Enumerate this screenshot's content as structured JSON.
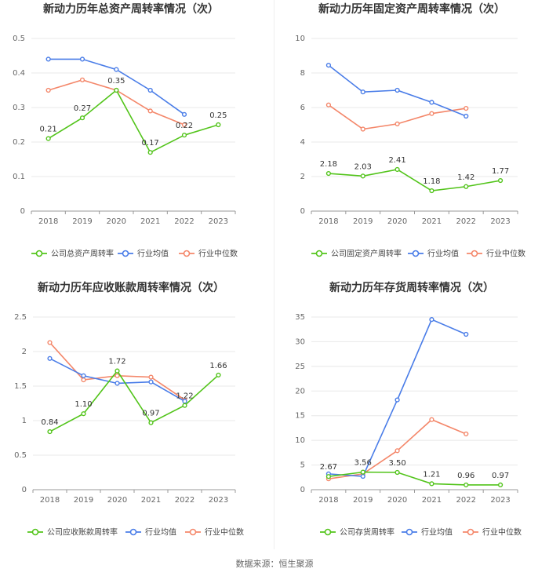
{
  "colors": {
    "company": "#52c41a",
    "industry_avg": "#4a7de8",
    "industry_median": "#f4876a"
  },
  "source": "数据来源：恒生聚源",
  "chart_data": [
    {
      "type": "line",
      "title": "新动力历年总资产周转率情况（次）",
      "categories": [
        "2018",
        "2019",
        "2020",
        "2021",
        "2022",
        "2023"
      ],
      "ylim": [
        0,
        0.5
      ],
      "yticks": [
        "0",
        "0.1",
        "0.2",
        "0.3",
        "0.4",
        "0.5"
      ],
      "ytick_values": [
        0,
        0.1,
        0.2,
        0.3,
        0.4,
        0.5
      ],
      "series": [
        {
          "name": "公司总资产周转率",
          "key": "company",
          "values": [
            0.21,
            0.27,
            0.35,
            0.17,
            0.22,
            0.25
          ],
          "labels": [
            "0.21",
            "0.27",
            "0.35",
            "0.17",
            "0.22",
            "0.25"
          ]
        },
        {
          "name": "行业均值",
          "key": "industry_avg",
          "values": [
            0.44,
            0.44,
            0.41,
            0.35,
            0.28,
            null
          ]
        },
        {
          "name": "行业中位数",
          "key": "industry_median",
          "values": [
            0.35,
            0.38,
            0.35,
            0.29,
            0.25,
            null
          ]
        }
      ]
    },
    {
      "type": "line",
      "title": "新动力历年固定资产周转率情况（次）",
      "categories": [
        "2018",
        "2019",
        "2020",
        "2021",
        "2022",
        "2023"
      ],
      "ylim": [
        0,
        10
      ],
      "yticks": [
        "0",
        "2",
        "4",
        "6",
        "8",
        "10"
      ],
      "ytick_values": [
        0,
        2,
        4,
        6,
        8,
        10
      ],
      "series": [
        {
          "name": "公司固定资产周转率",
          "key": "company",
          "values": [
            2.18,
            2.03,
            2.41,
            1.18,
            1.42,
            1.77
          ],
          "labels": [
            "2.18",
            "2.03",
            "2.41",
            "1.18",
            "1.42",
            "1.77"
          ]
        },
        {
          "name": "行业均值",
          "key": "industry_avg",
          "values": [
            8.45,
            6.9,
            7.0,
            6.3,
            5.5,
            null
          ]
        },
        {
          "name": "行业中位数",
          "key": "industry_median",
          "values": [
            6.15,
            4.75,
            5.05,
            5.65,
            5.95,
            null
          ]
        }
      ]
    },
    {
      "type": "line",
      "title": "新动力历年应收账款周转率情况（次）",
      "categories": [
        "2018",
        "2019",
        "2020",
        "2021",
        "2022",
        "2023"
      ],
      "ylim": [
        0,
        2.5
      ],
      "yticks": [
        "0",
        "0.5",
        "1",
        "1.5",
        "2",
        "2.5"
      ],
      "ytick_values": [
        0,
        0.5,
        1,
        1.5,
        2,
        2.5
      ],
      "series": [
        {
          "name": "公司应收账款周转率",
          "key": "company",
          "values": [
            0.84,
            1.1,
            1.72,
            0.97,
            1.22,
            1.66
          ],
          "labels": [
            "0.84",
            "1.10",
            "1.72",
            "0.97",
            "1.22",
            "1.66"
          ]
        },
        {
          "name": "行业均值",
          "key": "industry_avg",
          "values": [
            1.9,
            1.65,
            1.54,
            1.56,
            1.28,
            null
          ]
        },
        {
          "name": "行业中位数",
          "key": "industry_median",
          "values": [
            2.13,
            1.59,
            1.65,
            1.63,
            1.3,
            null
          ]
        }
      ]
    },
    {
      "type": "line",
      "title": "新动力历年存货周转率情况（次）",
      "categories": [
        "2018",
        "2019",
        "2020",
        "2021",
        "2022",
        "2023"
      ],
      "ylim": [
        0,
        35
      ],
      "yticks": [
        "0",
        "5",
        "10",
        "15",
        "20",
        "25",
        "30",
        "35"
      ],
      "ytick_values": [
        0,
        5,
        10,
        15,
        20,
        25,
        30,
        35
      ],
      "series": [
        {
          "name": "公司存货周转率",
          "key": "company",
          "values": [
            2.67,
            3.56,
            3.5,
            1.21,
            0.96,
            0.97
          ],
          "labels": [
            "2.67",
            "3.56",
            "3.50",
            "1.21",
            "0.96",
            "0.97"
          ]
        },
        {
          "name": "行业均值",
          "key": "industry_avg",
          "values": [
            3.2,
            2.7,
            18.2,
            34.5,
            31.5,
            null
          ]
        },
        {
          "name": "行业中位数",
          "key": "industry_median",
          "values": [
            2.2,
            3.2,
            7.9,
            14.2,
            11.3,
            null
          ]
        }
      ]
    }
  ]
}
